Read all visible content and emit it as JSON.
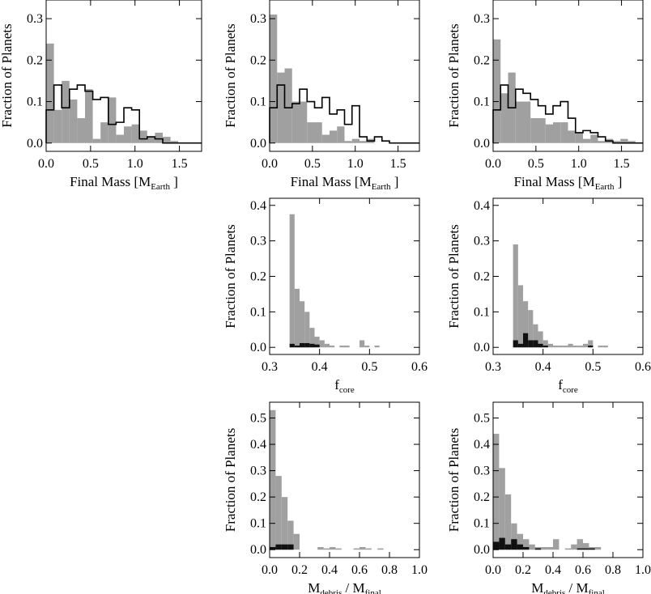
{
  "colors": {
    "filled": "#a0a0a0",
    "dark": "#111111",
    "line": "#000000"
  },
  "chart_data": [
    {
      "id": "p1",
      "type": "bar",
      "xlabel_main": "Final Mass [M",
      "xlabel_sub": "Earth",
      "xlabel_tail": " ]",
      "ylabel": "Fraction of Planets",
      "xlim": [
        0,
        1.75
      ],
      "ylim": [
        -0.02,
        0.345
      ],
      "xticks": [
        0,
        0.5,
        1.0,
        1.5
      ],
      "xtick_labels": [
        "0.0",
        "0.5",
        "1.0",
        "1.5"
      ],
      "yticks": [
        0,
        0.1,
        0.2,
        0.3
      ],
      "ytick_labels": [
        "0.0",
        "0.1",
        "0.2",
        "0.3"
      ],
      "bin_edges": [
        0,
        0.0875,
        0.175,
        0.2625,
        0.35,
        0.4375,
        0.525,
        0.6125,
        0.7,
        0.7875,
        0.875,
        0.9625,
        1.05,
        1.1375,
        1.225,
        1.3125,
        1.4,
        1.4875,
        1.575,
        1.6625,
        1.75
      ],
      "series": [
        {
          "name": "filled",
          "style": "fill",
          "values": [
            0.24,
            0.08,
            0.15,
            0.105,
            0.06,
            0.13,
            0.01,
            0.05,
            0.11,
            0.02,
            0.04,
            0.045,
            0.03,
            0.015,
            0.025,
            0.015,
            0.005,
            0,
            0,
            0
          ]
        },
        {
          "name": "outline",
          "style": "step",
          "values": [
            0.08,
            0.14,
            0.085,
            0.13,
            0.14,
            0.125,
            0.105,
            0.11,
            0.045,
            0.05,
            0.085,
            0.08,
            0.01,
            0.015,
            0.01,
            0,
            0,
            0,
            0,
            0
          ]
        }
      ]
    },
    {
      "id": "p2",
      "type": "bar",
      "xlabel_main": "Final Mass [M",
      "xlabel_sub": "Earth",
      "xlabel_tail": " ]",
      "ylabel": "Fraction of Planets",
      "xlim": [
        0,
        1.75
      ],
      "ylim": [
        -0.02,
        0.345
      ],
      "xticks": [
        0,
        0.5,
        1.0,
        1.5
      ],
      "xtick_labels": [
        "0.0",
        "0.5",
        "1.0",
        "1.5"
      ],
      "yticks": [
        0,
        0.1,
        0.2,
        0.3
      ],
      "ytick_labels": [
        "0.0",
        "0.1",
        "0.2",
        "0.3"
      ],
      "bin_edges": [
        0,
        0.0875,
        0.175,
        0.2625,
        0.35,
        0.4375,
        0.525,
        0.6125,
        0.7,
        0.7875,
        0.875,
        0.9625,
        1.05,
        1.1375,
        1.225,
        1.3125,
        1.4,
        1.4875,
        1.575,
        1.6625,
        1.75
      ],
      "series": [
        {
          "name": "filled",
          "style": "fill",
          "values": [
            0.31,
            0.17,
            0.18,
            0.1,
            0.1,
            0.05,
            0.05,
            0.02,
            0.03,
            0.04,
            0.005,
            0.01,
            0.005,
            0.01,
            0,
            0,
            0,
            0,
            0,
            0
          ]
        },
        {
          "name": "outline",
          "style": "step",
          "values": [
            0.085,
            0.14,
            0.085,
            0.095,
            0.13,
            0.1,
            0.085,
            0.11,
            0.07,
            0.08,
            0.045,
            0.09,
            0.015,
            0.005,
            0.015,
            0.005,
            0,
            0,
            0,
            0
          ]
        }
      ]
    },
    {
      "id": "p3",
      "type": "bar",
      "xlabel_main": "Final Mass [M",
      "xlabel_sub": "Earth",
      "xlabel_tail": " ]",
      "ylabel": "Fraction of Planets",
      "xlim": [
        0,
        1.75
      ],
      "ylim": [
        -0.02,
        0.345
      ],
      "xticks": [
        0,
        0.5,
        1.0,
        1.5
      ],
      "xtick_labels": [
        "0.0",
        "0.5",
        "1.0",
        "1.5"
      ],
      "yticks": [
        0,
        0.1,
        0.2,
        0.3
      ],
      "ytick_labels": [
        "0.0",
        "0.1",
        "0.2",
        "0.3"
      ],
      "bin_edges": [
        0,
        0.0875,
        0.175,
        0.2625,
        0.35,
        0.4375,
        0.525,
        0.6125,
        0.7,
        0.7875,
        0.875,
        0.9625,
        1.05,
        1.1375,
        1.225,
        1.3125,
        1.4,
        1.4875,
        1.575,
        1.6625,
        1.75
      ],
      "series": [
        {
          "name": "filled",
          "style": "fill",
          "values": [
            0.25,
            0.12,
            0.17,
            0.1,
            0.1,
            0.06,
            0.06,
            0.045,
            0.05,
            0.05,
            0.03,
            0.025,
            0.01,
            0.02,
            0.005,
            0.01,
            0.005,
            0.01,
            0.005,
            0
          ]
        },
        {
          "name": "outline",
          "style": "step",
          "values": [
            0.08,
            0.14,
            0.085,
            0.13,
            0.12,
            0.105,
            0.09,
            0.07,
            0.09,
            0.1,
            0.06,
            0.025,
            0.03,
            0.025,
            0.015,
            0.005,
            0,
            0,
            0,
            0
          ]
        }
      ]
    },
    {
      "id": "p4",
      "type": "bar",
      "xlabel_main": "f",
      "xlabel_sub": "core",
      "xlabel_tail": "",
      "ylabel": "Fraction of Planets",
      "xlim": [
        0.3,
        0.6
      ],
      "ylim": [
        -0.02,
        0.42
      ],
      "xticks": [
        0.3,
        0.4,
        0.5,
        0.6
      ],
      "xtick_labels": [
        "0.3",
        "0.4",
        "0.5",
        "0.6"
      ],
      "yticks": [
        0,
        0.1,
        0.2,
        0.3,
        0.4
      ],
      "ytick_labels": [
        "0.0",
        "0.1",
        "0.2",
        "0.3",
        "0.4"
      ],
      "bin_edges": [
        0.3,
        0.31,
        0.32,
        0.33,
        0.34,
        0.35,
        0.36,
        0.37,
        0.38,
        0.39,
        0.4,
        0.41,
        0.42,
        0.43,
        0.44,
        0.45,
        0.46,
        0.47,
        0.48,
        0.49,
        0.5,
        0.51,
        0.52,
        0.53,
        0.54,
        0.55,
        0.56,
        0.57,
        0.58,
        0.59,
        0.6
      ],
      "series": [
        {
          "name": "filled",
          "style": "fill",
          "values": [
            0,
            0,
            0,
            0,
            0.375,
            0.165,
            0.13,
            0.1,
            0.055,
            0.03,
            0.02,
            0.01,
            0.005,
            0,
            0.005,
            0.005,
            0,
            0,
            0.02,
            0.005,
            0,
            0.005,
            0,
            0,
            0,
            0,
            0,
            0,
            0,
            0
          ]
        },
        {
          "name": "dark",
          "style": "fill",
          "values": [
            0,
            0,
            0,
            0,
            0.01,
            0.005,
            0.012,
            0.012,
            0.01,
            0.008,
            0,
            0,
            0,
            0,
            0,
            0,
            0,
            0,
            0,
            0,
            0,
            0,
            0,
            0,
            0,
            0,
            0,
            0,
            0,
            0
          ]
        }
      ]
    },
    {
      "id": "p5",
      "type": "bar",
      "xlabel_main": "f",
      "xlabel_sub": "core",
      "xlabel_tail": "",
      "ylabel": "Fraction of Planets",
      "xlim": [
        0.3,
        0.6
      ],
      "ylim": [
        -0.02,
        0.42
      ],
      "xticks": [
        0.3,
        0.4,
        0.5,
        0.6
      ],
      "xtick_labels": [
        "0.3",
        "0.4",
        "0.5",
        "0.6"
      ],
      "yticks": [
        0,
        0.1,
        0.2,
        0.3,
        0.4
      ],
      "ytick_labels": [
        "0.0",
        "0.1",
        "0.2",
        "0.3",
        "0.4"
      ],
      "bin_edges": [
        0.3,
        0.31,
        0.32,
        0.33,
        0.34,
        0.35,
        0.36,
        0.37,
        0.38,
        0.39,
        0.4,
        0.41,
        0.42,
        0.43,
        0.44,
        0.45,
        0.46,
        0.47,
        0.48,
        0.49,
        0.5,
        0.51,
        0.52,
        0.53,
        0.54,
        0.55,
        0.56,
        0.57,
        0.58,
        0.59,
        0.6
      ],
      "series": [
        {
          "name": "filled",
          "style": "fill",
          "values": [
            0,
            0,
            0,
            0,
            0.29,
            0.175,
            0.13,
            0.105,
            0.065,
            0.045,
            0.02,
            0.01,
            0.005,
            0.005,
            0.005,
            0.01,
            0.005,
            0.005,
            0.01,
            0.02,
            0,
            0.005,
            0.005,
            0,
            0,
            0,
            0,
            0,
            0,
            0
          ]
        },
        {
          "name": "dark",
          "style": "fill",
          "values": [
            0,
            0,
            0,
            0,
            0.02,
            0.01,
            0.04,
            0.02,
            0.02,
            0.01,
            0.005,
            0,
            0,
            0,
            0,
            0,
            0,
            0,
            0,
            0.005,
            0,
            0,
            0,
            0,
            0,
            0,
            0,
            0,
            0,
            0
          ]
        }
      ]
    },
    {
      "id": "p6",
      "type": "bar",
      "xlabel_main": "M",
      "xlabel_sub": "debris",
      "xlabel_tail": " / M",
      "xlabel_sub2": "final",
      "ylabel": "Fraction of Planets",
      "xlim": [
        0,
        1.0
      ],
      "ylim": [
        -0.03,
        0.56
      ],
      "xticks": [
        0,
        0.2,
        0.4,
        0.6,
        0.8,
        1.0
      ],
      "xtick_labels": [
        "0.0",
        "0.2",
        "0.4",
        "0.6",
        "0.8",
        "1.0"
      ],
      "yticks": [
        0,
        0.1,
        0.2,
        0.3,
        0.4,
        0.5
      ],
      "ytick_labels": [
        "0.0",
        "0.1",
        "0.2",
        "0.3",
        "0.4",
        "0.5"
      ],
      "bin_edges": [
        0,
        0.04,
        0.08,
        0.12,
        0.16,
        0.2,
        0.24,
        0.28,
        0.32,
        0.36,
        0.4,
        0.44,
        0.48,
        0.52,
        0.56,
        0.6,
        0.64,
        0.68,
        0.72,
        0.76,
        0.8,
        0.84,
        0.88,
        0.92,
        0.96,
        1.0
      ],
      "series": [
        {
          "name": "filled",
          "style": "fill",
          "values": [
            0.53,
            0.28,
            0.2,
            0.11,
            0.06,
            0,
            0,
            0,
            0.01,
            0.005,
            0.01,
            0.005,
            0,
            0,
            0.005,
            0.01,
            0.005,
            0,
            0.005,
            0,
            0,
            0,
            0,
            0,
            0
          ]
        },
        {
          "name": "dark",
          "style": "fill",
          "values": [
            0.01,
            0.02,
            0.02,
            0.02,
            0,
            0,
            0,
            0,
            0,
            0,
            0,
            0,
            0,
            0,
            0,
            0,
            0,
            0,
            0,
            0,
            0,
            0,
            0,
            0,
            0
          ]
        }
      ]
    },
    {
      "id": "p7",
      "type": "bar",
      "xlabel_main": "M",
      "xlabel_sub": "debris",
      "xlabel_tail": " / M",
      "xlabel_sub2": "final",
      "ylabel": "Fraction of Planets",
      "xlim": [
        0,
        1.0
      ],
      "ylim": [
        -0.03,
        0.56
      ],
      "xticks": [
        0,
        0.2,
        0.4,
        0.6,
        0.8,
        1.0
      ],
      "xtick_labels": [
        "0.0",
        "0.2",
        "0.4",
        "0.6",
        "0.8",
        "1.0"
      ],
      "yticks": [
        0,
        0.1,
        0.2,
        0.3,
        0.4,
        0.5
      ],
      "ytick_labels": [
        "0.0",
        "0.1",
        "0.2",
        "0.3",
        "0.4",
        "0.5"
      ],
      "bin_edges": [
        0,
        0.04,
        0.08,
        0.12,
        0.16,
        0.2,
        0.24,
        0.28,
        0.32,
        0.36,
        0.4,
        0.44,
        0.48,
        0.52,
        0.56,
        0.6,
        0.64,
        0.68,
        0.72,
        0.76,
        0.8,
        0.84,
        0.88,
        0.92,
        0.96,
        1.0
      ],
      "series": [
        {
          "name": "filled",
          "style": "fill",
          "values": [
            0.44,
            0.31,
            0.21,
            0.1,
            0.06,
            0.04,
            0.02,
            0.01,
            0.01,
            0.01,
            0.04,
            0,
            0.005,
            0.02,
            0.04,
            0.025,
            0.01,
            0.01,
            0,
            0,
            0,
            0,
            0,
            0,
            0
          ]
        },
        {
          "name": "dark",
          "style": "fill",
          "values": [
            0.03,
            0.045,
            0.02,
            0.04,
            0.02,
            0.01,
            0,
            0.005,
            0,
            0,
            0,
            0,
            0,
            0,
            0.005,
            0.005,
            0.005,
            0,
            0,
            0,
            0,
            0,
            0,
            0,
            0
          ]
        }
      ]
    }
  ]
}
